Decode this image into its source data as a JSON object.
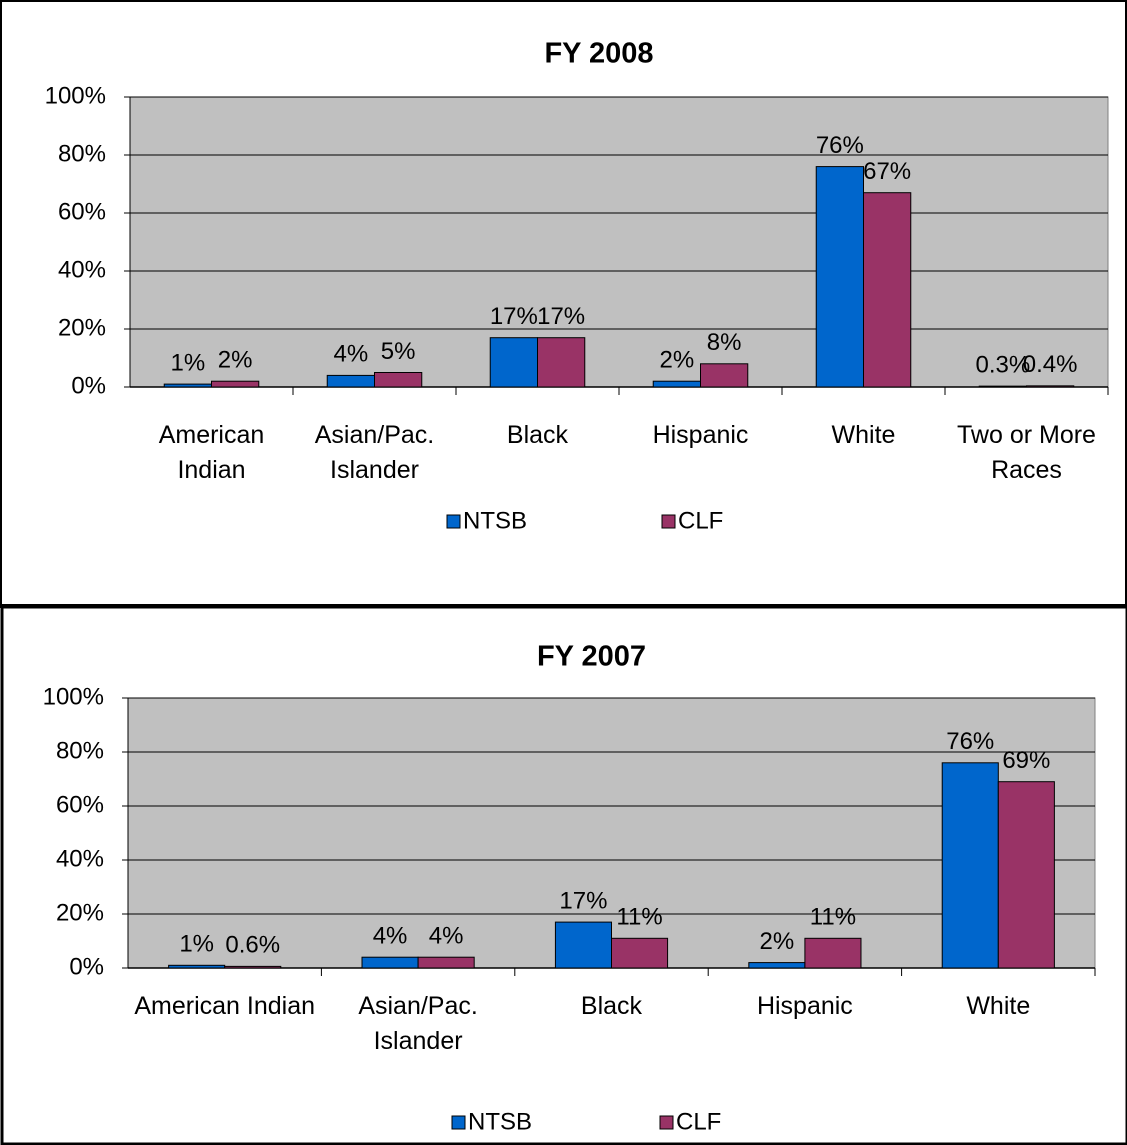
{
  "chart_data": [
    {
      "type": "bar",
      "title": "FY 2008",
      "categories": [
        "American Indian",
        "Asian/Pac. Islander",
        "Black",
        "Hispanic",
        "White",
        "Two or More Races"
      ],
      "series": [
        {
          "name": "NTSB",
          "color": "#0066cc",
          "values": [
            1,
            4,
            17,
            2,
            76,
            0.3
          ],
          "value_labels": [
            "1%",
            "4%",
            "17%",
            "2%",
            "76%",
            "0.3%"
          ]
        },
        {
          "name": "CLF",
          "color": "#993366",
          "values": [
            2,
            5,
            17,
            8,
            67,
            0.4
          ],
          "value_labels": [
            "2%",
            "5%",
            "17%",
            "8%",
            "67%",
            "0.4%"
          ]
        }
      ],
      "ylim": [
        0,
        100
      ],
      "yticks": [
        {
          "value": 0,
          "label": "0%"
        },
        {
          "value": 20,
          "label": "20%"
        },
        {
          "value": 40,
          "label": "40%"
        },
        {
          "value": 60,
          "label": "60%"
        },
        {
          "value": 80,
          "label": "80%"
        },
        {
          "value": 100,
          "label": "100%"
        }
      ],
      "grid": true,
      "legend": "bottom"
    },
    {
      "type": "bar",
      "title": "FY 2007",
      "categories": [
        "American Indian",
        "Asian/Pac. Islander",
        "Black",
        "Hispanic",
        "White"
      ],
      "series": [
        {
          "name": "NTSB",
          "color": "#0066cc",
          "values": [
            1,
            4,
            17,
            2,
            76
          ],
          "value_labels": [
            "1%",
            "4%",
            "17%",
            "2%",
            "76%"
          ]
        },
        {
          "name": "CLF",
          "color": "#993366",
          "values": [
            0.6,
            4,
            11,
            11,
            69
          ],
          "value_labels": [
            "0.6%",
            "4%",
            "11%",
            "11%",
            "69%"
          ]
        }
      ],
      "ylim": [
        0,
        100
      ],
      "yticks": [
        {
          "value": 0,
          "label": "0%"
        },
        {
          "value": 20,
          "label": "20%"
        },
        {
          "value": 40,
          "label": "40%"
        },
        {
          "value": 60,
          "label": "60%"
        },
        {
          "value": 80,
          "label": "80%"
        },
        {
          "value": 100,
          "label": "100%"
        }
      ],
      "grid": true,
      "legend": "bottom"
    }
  ]
}
